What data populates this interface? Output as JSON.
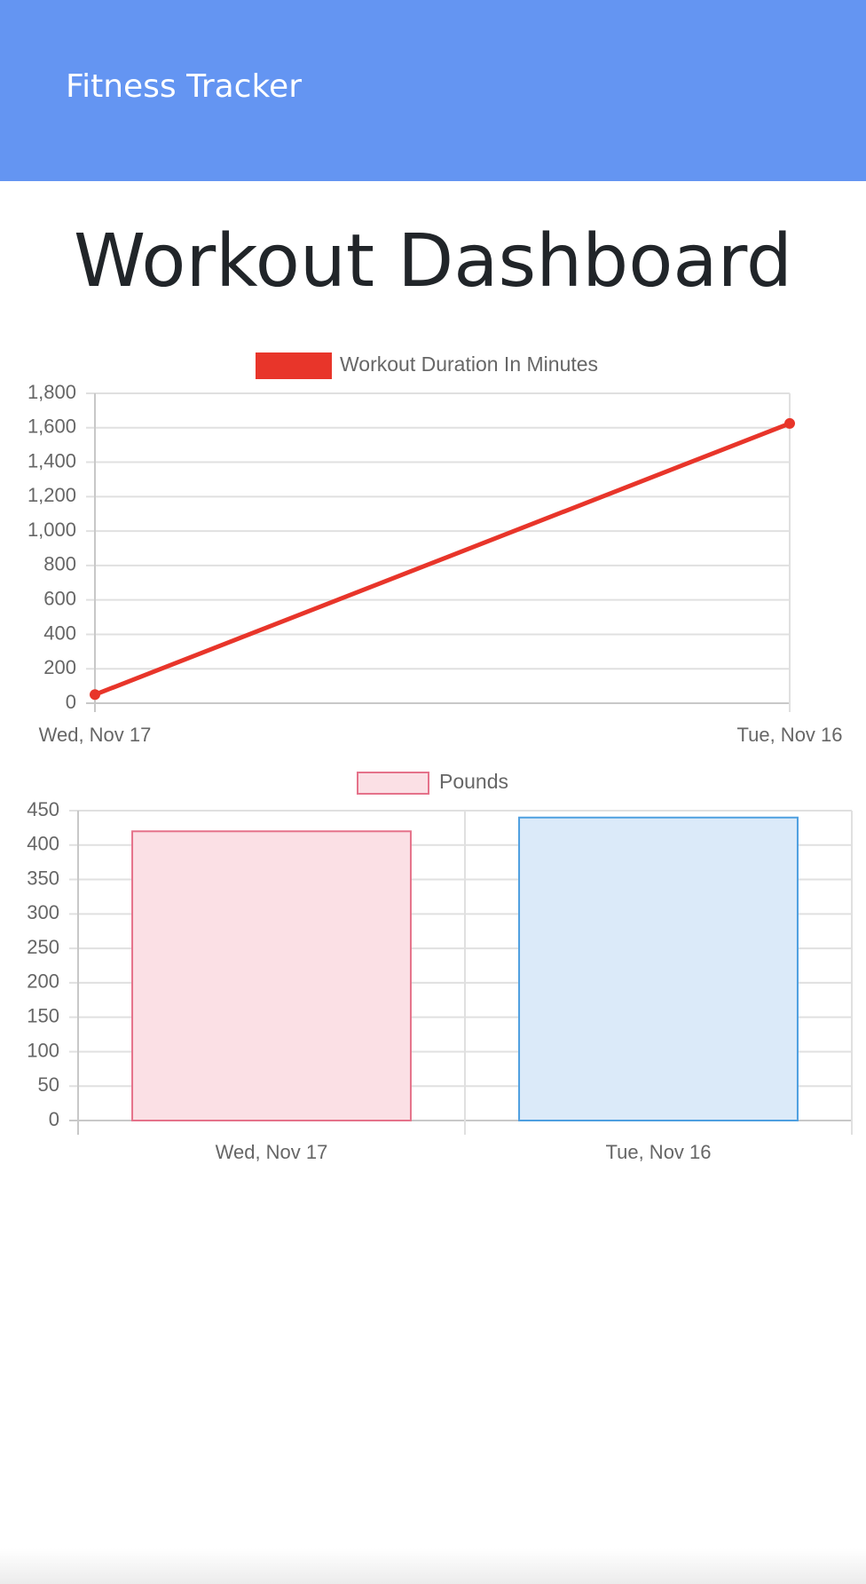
{
  "navbar": {
    "brand": "Fitness Tracker"
  },
  "page": {
    "title": "Workout Dashboard"
  },
  "chart_data": [
    {
      "type": "line",
      "legend": "Workout Duration In Minutes",
      "legend_position": "top",
      "categories": [
        "Wed, Nov 17",
        "Tue, Nov 16"
      ],
      "values": [
        50,
        1625
      ],
      "ylim": [
        0,
        1800
      ],
      "yticks": [
        0,
        200,
        400,
        600,
        800,
        1000,
        1200,
        1400,
        1600,
        1800
      ],
      "ytick_labels": [
        "0",
        "200",
        "400",
        "600",
        "800",
        "1,000",
        "1,200",
        "1,400",
        "1,600",
        "1,800"
      ],
      "grid": true,
      "color": "#e8352a"
    },
    {
      "type": "bar",
      "legend": "Pounds",
      "legend_position": "top",
      "categories": [
        "Wed, Nov 17",
        "Tue, Nov 16"
      ],
      "values": [
        420,
        440
      ],
      "ylim": [
        0,
        450
      ],
      "yticks": [
        0,
        50,
        100,
        150,
        200,
        250,
        300,
        350,
        400,
        450
      ],
      "ytick_labels": [
        "0",
        "50",
        "100",
        "150",
        "200",
        "250",
        "300",
        "350",
        "400",
        "450"
      ],
      "grid": true,
      "fill_colors": [
        "#fbe0e5",
        "#dbeaf9"
      ],
      "border_colors": [
        "#e5728a",
        "#4e9fe0"
      ]
    }
  ]
}
